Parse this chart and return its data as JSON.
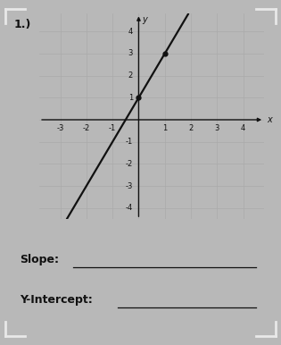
{
  "title_label": "1.)",
  "x_label": "x",
  "y_label": "y",
  "xlim": [
    -3.8,
    4.8
  ],
  "ylim": [
    -4.5,
    4.8
  ],
  "xticks": [
    -3,
    -2,
    -1,
    1,
    2,
    3,
    4
  ],
  "yticks": [
    -4,
    -3,
    -2,
    -1,
    1,
    2,
    3,
    4
  ],
  "grid_xticks": [
    -3,
    -2,
    -1,
    0,
    1,
    2,
    3,
    4
  ],
  "grid_yticks": [
    -4,
    -3,
    -2,
    -1,
    0,
    1,
    2,
    3,
    4
  ],
  "slope": 2,
  "y_intercept": 1,
  "points": [
    [
      0,
      1
    ],
    [
      1,
      3
    ]
  ],
  "line_color": "#111111",
  "point_color": "#111111",
  "grid_color": "#aaaaaa",
  "bg_color": "#b8b8b8",
  "axes_color": "#111111",
  "text_color": "#111111",
  "slope_label": "Slope:",
  "yint_label": "Y-Intercept:",
  "bracket_color": "#e8e8e8"
}
